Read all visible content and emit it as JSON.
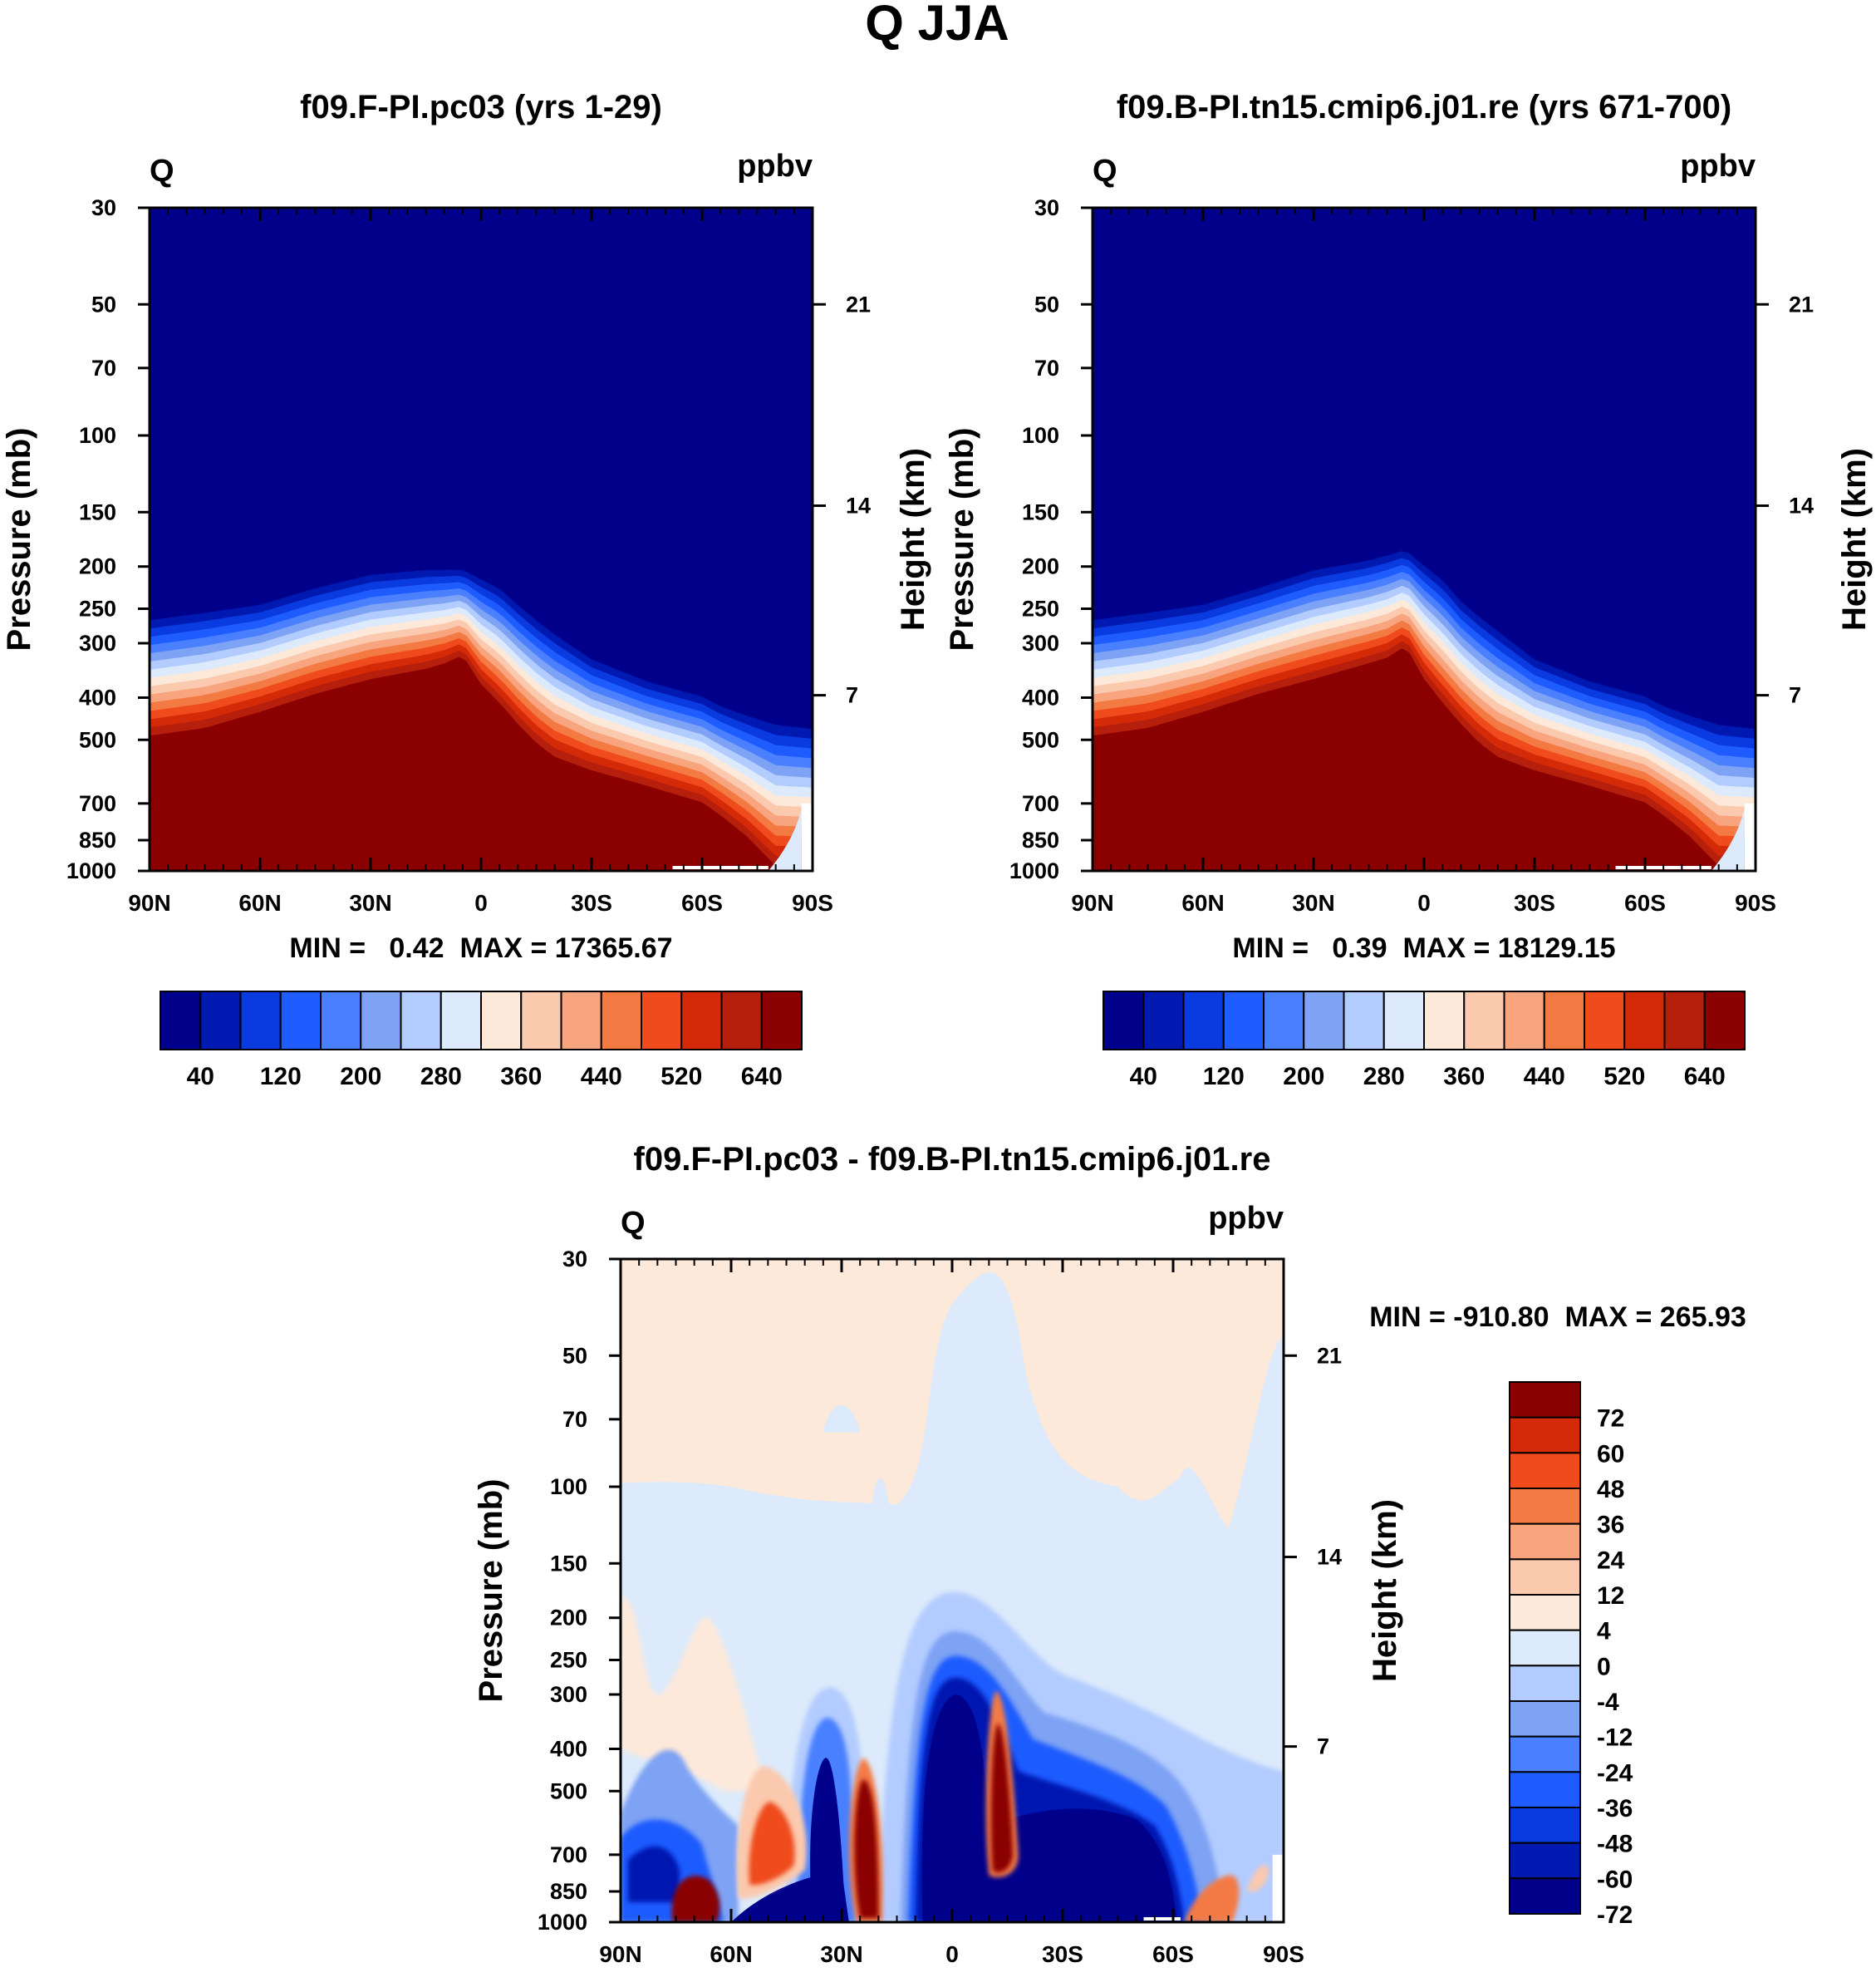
{
  "figure_title": "Q JJA",
  "colors": {
    "abs_palette": [
      "#00008a",
      "#0019b0",
      "#0a3be0",
      "#1f5cff",
      "#4a80ff",
      "#7ea2f4",
      "#b3ccff",
      "#dceafb",
      "#fde9da",
      "#fbc9ad",
      "#f8a47e",
      "#f47a44",
      "#ef4b1c",
      "#d42a08",
      "#b51f0b",
      "#8b0000"
    ],
    "diff_palette": [
      "#00008a",
      "#0019b0",
      "#0a3be0",
      "#1f5cff",
      "#4a80ff",
      "#7ea2f4",
      "#b3ccff",
      "#dceafb",
      "#fde9da",
      "#fbc9ad",
      "#f8a47e",
      "#f47a44",
      "#ef4b1c",
      "#d42a08",
      "#8b0000"
    ],
    "missing": "#ffffff"
  },
  "panels": [
    {
      "id": "left",
      "title": "f09.F-PI.pc03 (yrs 1-29)",
      "left_label": "Q",
      "right_label": "ppbv",
      "stats": "MIN =   0.42  MAX = 17365.67",
      "ylabel": "Pressure (mb)",
      "ylabel_right": "Height (km)"
    },
    {
      "id": "right",
      "title": "f09.B-PI.tn15.cmip6.j01.re (yrs 671-700)",
      "left_label": "Q",
      "right_label": "ppbv",
      "stats": "MIN =   0.39  MAX = 18129.15",
      "ylabel": "Pressure (mb)",
      "ylabel_right": "Height (km)"
    },
    {
      "id": "diff",
      "title": "f09.F-PI.pc03 - f09.B-PI.tn15.cmip6.j01.re",
      "left_label": "Q",
      "right_label": "ppbv",
      "stats": "MIN = -910.80  MAX = 265.93",
      "ylabel": "Pressure (mb)",
      "ylabel_right": "Height (km)"
    }
  ],
  "chart_data": [
    {
      "type": "heatmap",
      "title": "f09.F-PI.pc03 (yrs 1-29)",
      "variable": "Q",
      "units": "ppbv",
      "x_tick_labels": [
        "90N",
        "60N",
        "30N",
        "0",
        "30S",
        "60S",
        "90S"
      ],
      "x_ticks_deg": [
        90,
        60,
        30,
        0,
        -30,
        -60,
        -90
      ],
      "y_ticks_mb": [
        30,
        50,
        70,
        100,
        150,
        200,
        250,
        300,
        400,
        500,
        700,
        850,
        1000
      ],
      "y_ticks_right_km": [
        21,
        14,
        7
      ],
      "ylim_mb": [
        1000,
        30
      ],
      "colorbar_levels": [
        40,
        120,
        200,
        280,
        360,
        440,
        520,
        640
      ],
      "colorbar_bins": 16,
      "min": 0.42,
      "max": 17365.67,
      "boundary_latitudes": [
        90,
        75,
        60,
        45,
        30,
        15,
        10,
        5,
        0,
        -5,
        -10,
        -15,
        -20,
        -30,
        -45,
        -60,
        -65,
        -72,
        -80,
        -90
      ],
      "moist_boundary_mb": [
        500,
        480,
        440,
        400,
        370,
        350,
        340,
        325,
        380,
        420,
        470,
        520,
        560,
        600,
        650,
        710,
        760,
        850,
        1000,
        1000
      ],
      "dry_boundary_mb": [
        260,
        250,
        240,
        220,
        205,
        200,
        200,
        200,
        210,
        220,
        240,
        260,
        280,
        320,
        360,
        390,
        410,
        430,
        450,
        460
      ]
    },
    {
      "type": "heatmap",
      "title": "f09.B-PI.tn15.cmip6.j01.re (yrs 671-700)",
      "variable": "Q",
      "units": "ppbv",
      "x_tick_labels": [
        "90N",
        "60N",
        "30N",
        "0",
        "30S",
        "60S",
        "90S"
      ],
      "x_ticks_deg": [
        90,
        60,
        30,
        0,
        -30,
        -60,
        -90
      ],
      "y_ticks_mb": [
        30,
        50,
        70,
        100,
        150,
        200,
        250,
        300,
        400,
        500,
        700,
        850,
        1000
      ],
      "y_ticks_right_km": [
        21,
        14,
        7
      ],
      "ylim_mb": [
        1000,
        30
      ],
      "colorbar_levels": [
        40,
        120,
        200,
        280,
        360,
        440,
        520,
        640
      ],
      "colorbar_bins": 16,
      "min": 0.39,
      "max": 18129.15,
      "boundary_latitudes": [
        90,
        75,
        60,
        45,
        30,
        15,
        10,
        5,
        0,
        -5,
        -10,
        -15,
        -20,
        -30,
        -45,
        -60,
        -65,
        -72,
        -80,
        -90
      ],
      "moist_boundary_mb": [
        500,
        480,
        440,
        400,
        370,
        340,
        330,
        310,
        370,
        420,
        470,
        520,
        560,
        600,
        650,
        710,
        760,
        850,
        1000,
        1000
      ],
      "dry_boundary_mb": [
        260,
        250,
        240,
        220,
        200,
        190,
        185,
        180,
        195,
        210,
        235,
        255,
        275,
        320,
        360,
        390,
        410,
        430,
        450,
        460
      ]
    },
    {
      "type": "heatmap",
      "title": "f09.F-PI.pc03 - f09.B-PI.tn15.cmip6.j01.re",
      "variable": "Q",
      "units": "ppbv",
      "x_tick_labels": [
        "90N",
        "60N",
        "30N",
        "0",
        "30S",
        "60S",
        "90S"
      ],
      "x_ticks_deg": [
        90,
        60,
        30,
        0,
        -30,
        -60,
        -90
      ],
      "y_ticks_mb": [
        30,
        50,
        70,
        100,
        150,
        200,
        250,
        300,
        400,
        500,
        700,
        850,
        1000
      ],
      "y_ticks_right_km": [
        21,
        14,
        7
      ],
      "ylim_mb": [
        1000,
        30
      ],
      "colorbar_levels": [
        72,
        60,
        48,
        36,
        24,
        12,
        4,
        0,
        -4,
        -12,
        -24,
        -36,
        -48,
        -60,
        -72
      ],
      "min": -910.8,
      "max": 265.93,
      "features": [
        {
          "name": "upper positive layer",
          "sign": "+",
          "value": 2,
          "lat_range": [
            90,
            -90
          ],
          "p_range_mb": [
            30,
            95
          ]
        },
        {
          "name": "tropical lower-stratosphere negative",
          "sign": "-",
          "value": -2,
          "lat_range": [
            15,
            -45
          ],
          "p_range_mb": [
            40,
            110
          ]
        },
        {
          "name": "deep tropical negative core",
          "sign": "-",
          "value": -200,
          "lat_center": -5,
          "p_top_mb": 300
        },
        {
          "name": "positive plume 25N",
          "sign": "+",
          "value": 150,
          "lat_center": 25,
          "p_top_mb": 450
        },
        {
          "name": "positive plume 12S",
          "sign": "+",
          "value": 90,
          "lat_center": -12,
          "p_top_mb": 300
        },
        {
          "name": "positive blob 45N",
          "sign": "+",
          "value": 60,
          "lat_center": 45,
          "p_center_mb": 650
        },
        {
          "name": "positive blob 70N",
          "sign": "+",
          "value": 150,
          "lat_center": 70,
          "p_center_mb": 900
        },
        {
          "name": "positive blob 72S",
          "sign": "+",
          "value": 40,
          "lat_center": -72,
          "p_center_mb": 850
        },
        {
          "name": "negative blob 35N",
          "sign": "-",
          "value": -100,
          "lat_center": 35,
          "p_center_mb": 500
        },
        {
          "name": "southern subtropical negative",
          "sign": "-",
          "value": -100,
          "lat_center": -45,
          "p_center_mb": 750
        }
      ]
    }
  ]
}
